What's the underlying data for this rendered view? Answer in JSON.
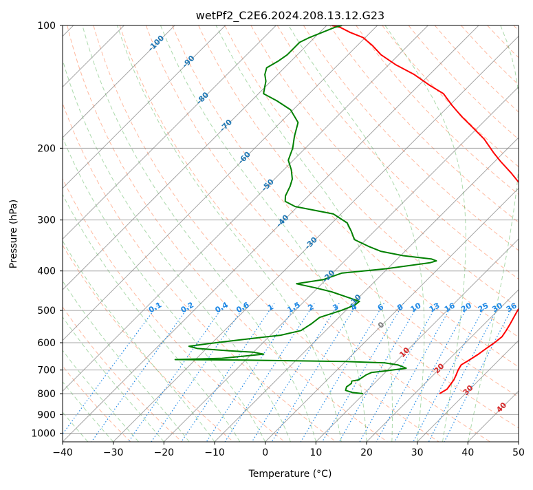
{
  "chart_data": {
    "type": "line",
    "subtype": "skew-t log-p",
    "title": "wetPf2_C2E6.2024.208.13.12.G23",
    "xlabel": "Temperature (°C)",
    "ylabel": "Pressure (hPa)",
    "xlim": [
      -40,
      50
    ],
    "ylim": [
      1050,
      100
    ],
    "y_scale": "log",
    "grid": true,
    "x_ticks": [
      "−40",
      "−30",
      "−20",
      "−10",
      "0",
      "10",
      "20",
      "30",
      "40",
      "50"
    ],
    "y_ticks": [
      "100",
      "200",
      "300",
      "400",
      "500",
      "600",
      "700",
      "800",
      "900",
      "1000"
    ],
    "colors": {
      "temperature": "#ff0000",
      "dewpoint": "#008000",
      "isotherm": "#7f7f7f",
      "dry_adiabat": "#ff7f50",
      "moist_adiabat": "#2ca02c",
      "mixing_ratio": "#1e88e5",
      "isotherm_label": "#d62728",
      "ps_label": "#1f77b4"
    },
    "series": [
      {
        "name": "",
        "role": "temperature",
        "points": [
          [
            24.9,
            800
          ],
          [
            25.5,
            780
          ],
          [
            25.0,
            740
          ],
          [
            24.5,
            720
          ],
          [
            23.9,
            700
          ],
          [
            23.5,
            680
          ],
          [
            24.2,
            660
          ],
          [
            24.8,
            640
          ],
          [
            25.2,
            620
          ],
          [
            25.7,
            600
          ],
          [
            26.0,
            580
          ],
          [
            25.6,
            560
          ],
          [
            25.1,
            540
          ],
          [
            24.5,
            520
          ],
          [
            23.9,
            500
          ],
          [
            23.4,
            480
          ],
          [
            23.2,
            460
          ],
          [
            23.1,
            440
          ],
          [
            23.1,
            420
          ],
          [
            22.5,
            400
          ],
          [
            19.5,
            380
          ],
          [
            16.0,
            360
          ],
          [
            13.0,
            340
          ],
          [
            10.0,
            320
          ],
          [
            7.0,
            305
          ],
          [
            5.4,
            290
          ],
          [
            4.5,
            275
          ],
          [
            4.0,
            265
          ],
          [
            2.0,
            255
          ],
          [
            -1.0,
            243
          ],
          [
            -4.5,
            230
          ],
          [
            -9.0,
            215
          ],
          [
            -12.0,
            205
          ],
          [
            -16.5,
            190
          ],
          [
            -21.0,
            178
          ],
          [
            -25.5,
            167
          ],
          [
            -29.5,
            157
          ],
          [
            -33.5,
            147
          ],
          [
            -38.0,
            140
          ],
          [
            -43.0,
            132
          ],
          [
            -48.5,
            125
          ],
          [
            -53.5,
            118
          ],
          [
            -57.0,
            112
          ],
          [
            -60.5,
            107
          ],
          [
            -64.0,
            104
          ],
          [
            -67.0,
            101
          ],
          [
            -69.0,
            100
          ]
        ]
      },
      {
        "name": "",
        "role": "dewpoint",
        "points": [
          [
            9.8,
            800
          ],
          [
            7.5,
            795
          ],
          [
            5.7,
            785
          ],
          [
            5.2,
            770
          ],
          [
            5.5,
            755
          ],
          [
            5.1,
            745
          ],
          [
            6.2,
            740
          ],
          [
            6.7,
            720
          ],
          [
            7.3,
            710
          ],
          [
            9.2,
            705
          ],
          [
            13.3,
            693
          ],
          [
            11.0,
            680
          ],
          [
            8.0,
            672
          ],
          [
            0.0,
            667
          ],
          [
            -20.0,
            662
          ],
          [
            -34.0,
            660
          ],
          [
            -25.0,
            655
          ],
          [
            -17.6,
            640
          ],
          [
            -20.0,
            633
          ],
          [
            -25.0,
            628
          ],
          [
            -31.8,
            620
          ],
          [
            -33.9,
            612
          ],
          [
            -30.5,
            603
          ],
          [
            -25.0,
            590
          ],
          [
            -18.0,
            575
          ],
          [
            -14.9,
            560
          ],
          [
            -14.2,
            540
          ],
          [
            -13.8,
            520
          ],
          [
            -10.9,
            500
          ],
          [
            -9.3,
            485
          ],
          [
            -9.1,
            475
          ],
          [
            -12.0,
            465
          ],
          [
            -16.5,
            450
          ],
          [
            -20.5,
            440
          ],
          [
            -25.0,
            430
          ],
          [
            -20.5,
            420
          ],
          [
            -18.2,
            405
          ],
          [
            -10.3,
            395
          ],
          [
            -2.8,
            382
          ],
          [
            -1.9,
            378
          ],
          [
            -3.2,
            374
          ],
          [
            -9.5,
            367
          ],
          [
            -14.8,
            358
          ],
          [
            -18.2,
            348
          ],
          [
            -22.3,
            335
          ],
          [
            -24.5,
            320
          ],
          [
            -27.0,
            305
          ],
          [
            -31.5,
            290
          ],
          [
            -40.5,
            278
          ],
          [
            -43.5,
            270
          ],
          [
            -44.5,
            262
          ],
          [
            -45.0,
            255
          ],
          [
            -45.5,
            248
          ],
          [
            -46.5,
            238
          ],
          [
            -48.5,
            226
          ],
          [
            -51.0,
            214
          ],
          [
            -52.5,
            200
          ],
          [
            -54.5,
            187
          ],
          [
            -56.5,
            173
          ],
          [
            -60.5,
            161
          ],
          [
            -65.0,
            153
          ],
          [
            -69.0,
            147
          ],
          [
            -70.0,
            142
          ],
          [
            -71.0,
            137
          ],
          [
            -72.5,
            132
          ],
          [
            -73.5,
            127
          ],
          [
            -72.5,
            122
          ],
          [
            -72.0,
            118
          ],
          [
            -72.0,
            114
          ],
          [
            -72.0,
            110
          ],
          [
            -71.0,
            107
          ],
          [
            -69.5,
            104
          ],
          [
            -68.5,
            102
          ],
          [
            -68.0,
            101
          ],
          [
            -67.0,
            100
          ]
        ]
      }
    ],
    "dry_adiabat_labels": [
      "-100",
      "-90",
      "-80",
      "-70",
      "-60",
      "-50",
      "-40",
      "-30",
      "-20",
      "-10"
    ],
    "mixing_ratio_labels": [
      "0.1",
      "0.2",
      "0.4",
      "0.6",
      "1",
      "1.5",
      "2",
      "3",
      "4",
      "6",
      "8",
      "10",
      "13",
      "16",
      "20",
      "25",
      "30",
      "36"
    ],
    "isotherm_labels": [
      "0",
      "10",
      "20",
      "30",
      "40"
    ]
  }
}
